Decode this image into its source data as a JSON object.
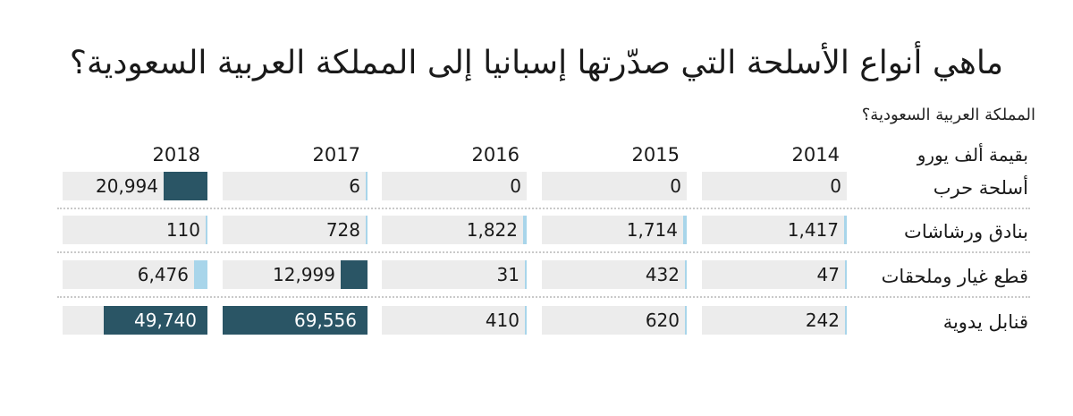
{
  "title": "ماهي أنواع الأسلحة التي صدّرتها إسبانيا إلى المملكة العربية السعودية؟",
  "subtitle": "المملكة العربية السعودية؟",
  "unit_label": "بقيمة ألف يورو",
  "colors": {
    "light_bar": "#a8d5ea",
    "dark_bar": "#2a5565",
    "cell_bg": "#ececec",
    "text": "#1a1a1a",
    "text_on_dark": "#ffffff"
  },
  "chart_data": {
    "type": "table",
    "title": "ماهي أنواع الأسلحة التي صدّرتها إسبانيا إلى المملكة العربية السعودية؟",
    "subtitle": "المملكة العربية السعودية؟",
    "unit": "بقيمة ألف يورو",
    "years": [
      "2014",
      "2015",
      "2016",
      "2017",
      "2018"
    ],
    "rows": [
      {
        "label": "أسلحة حرب",
        "values": [
          0,
          0,
          0,
          6,
          20994
        ],
        "display": [
          "0",
          "0",
          "0",
          "6",
          "20,994"
        ]
      },
      {
        "label": "بنادق ورشاشات",
        "values": [
          1417,
          1714,
          1822,
          728,
          110
        ],
        "display": [
          "1,417",
          "1,714",
          "1,822",
          "728",
          "110"
        ]
      },
      {
        "label": "قطع غيار وملحقات",
        "values": [
          47,
          432,
          31,
          12999,
          6476
        ],
        "display": [
          "47",
          "432",
          "31",
          "12,999",
          "6,476"
        ]
      },
      {
        "label": "قنابل يدوية",
        "values": [
          242,
          620,
          410,
          69556,
          49740
        ],
        "display": [
          "242",
          "620",
          "410",
          "69,556",
          "49,740"
        ]
      }
    ],
    "scale_max": 69556,
    "dark_threshold": 10000
  }
}
